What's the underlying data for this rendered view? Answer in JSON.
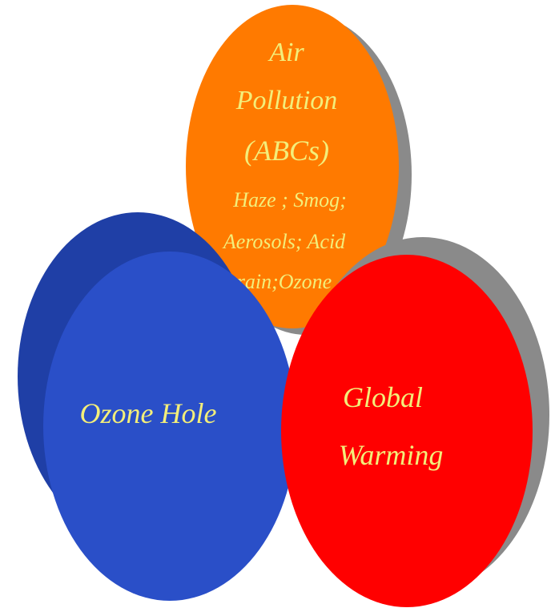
{
  "colors": {
    "background": "#ffffff",
    "shadow": "#8a8a8a",
    "air_pollution": "#ff7a00",
    "ozone_hole": "#2a4fc8",
    "ozone_hole_dark": "#1f3fa6",
    "global_warming": "#ff0000",
    "label_text": "#f3ee7a"
  },
  "circles": {
    "air_pollution": {
      "title_line1": "Air",
      "title_line2": "Pollution",
      "title_line3": "(ABCs)",
      "detail_line1": "Haze ; Smog;",
      "detail_line2": "Aerosols; Acid",
      "detail_line3": "rain;Ozone"
    },
    "ozone_hole": {
      "label": "Ozone Hole"
    },
    "global_warming": {
      "label_line1": "Global",
      "label_line2": "Warming"
    }
  }
}
